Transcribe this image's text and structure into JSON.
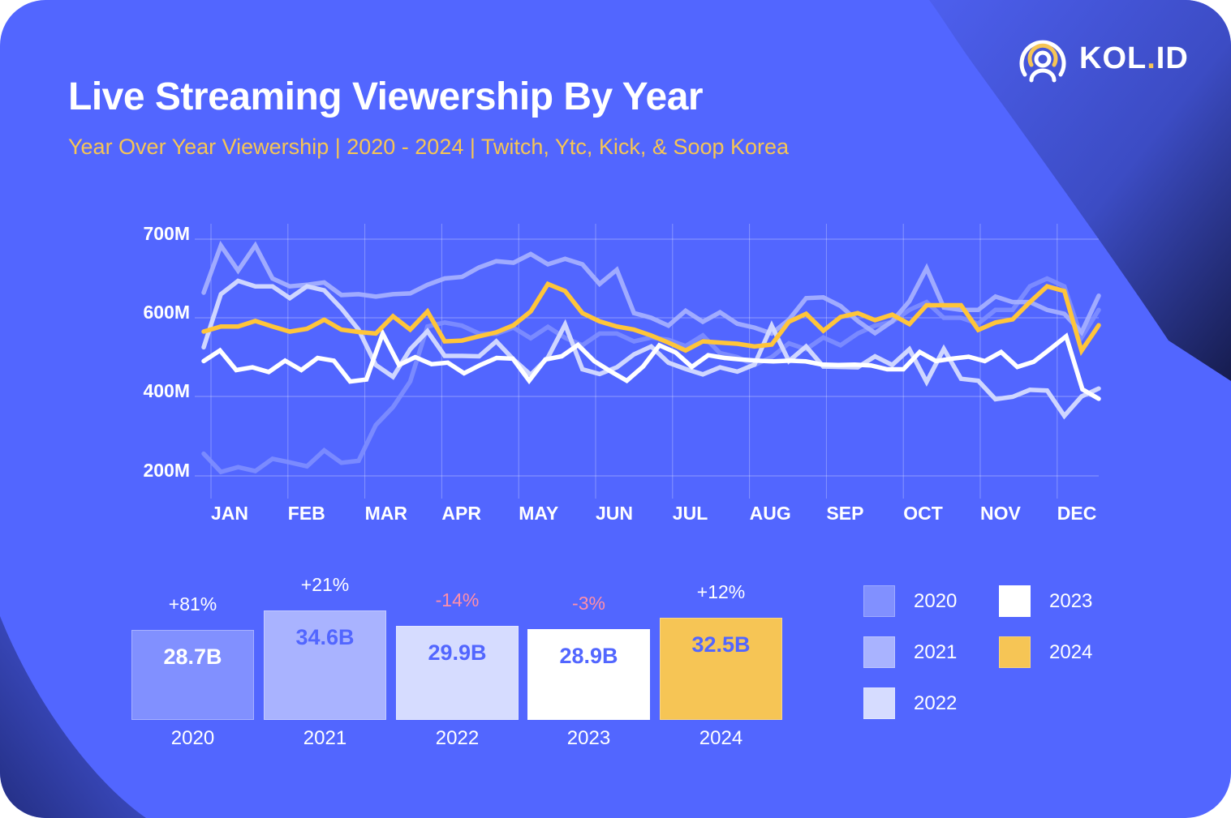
{
  "header": {
    "title": "Live Streaming Viewership By Year",
    "subtitle": "Year Over Year Viewership | 2020 - 2024 | Twitch, Ytc, Kick, & Soop Korea"
  },
  "brand": {
    "name_main": "KOL",
    "name_dot": ".",
    "name_end": "ID",
    "icon": "broadcast-person-icon",
    "accent": "#f6c555"
  },
  "colors": {
    "background": "#5266ff",
    "2020": "#8190ff",
    "2021": "#a9b3ff",
    "2022": "#d6dcff",
    "2023": "#ffffff",
    "2024": "#f6c555",
    "negative": "#ff8fa8",
    "positive": "#ffffff"
  },
  "chart_data": [
    {
      "type": "line",
      "title": "Live Streaming Viewership By Year",
      "xlabel": "",
      "ylabel": "",
      "y_ticks": [
        "700M",
        "600M",
        "400M",
        "200M"
      ],
      "y_tick_values": [
        700,
        600,
        400,
        200
      ],
      "y_unit": "M viewers (weekly)",
      "grid": true,
      "x_ticks": [
        "JAN",
        "FEB",
        "MAR",
        "APR",
        "MAY",
        "JUN",
        "JUL",
        "AUG",
        "SEP",
        "OCT",
        "NOV",
        "DEC"
      ],
      "series": [
        {
          "name": "2020",
          "values": [
            256,
            210,
            222,
            212,
            243,
            234,
            224,
            264,
            233,
            238,
            328,
            373,
            438,
            578,
            588,
            580,
            560,
            559,
            575,
            548,
            577,
            549,
            530,
            560,
            560,
            540,
            550,
            544,
            528,
            555,
            510,
            500,
            480,
            500,
            535,
            520,
            550,
            530,
            560,
            580,
            590,
            610,
            620,
            600,
            600,
            585,
            610,
            610,
            640,
            650,
            640,
            550,
            610
          ]
        },
        {
          "name": "2021",
          "values": [
            632,
            692,
            660,
            692,
            650,
            640,
            642,
            645,
            629,
            630,
            627,
            630,
            631,
            642,
            650,
            652,
            664,
            672,
            670,
            681,
            668,
            675,
            668,
            643,
            661,
            606,
            600,
            580,
            609,
            590,
            607,
            585,
            575,
            560,
            595,
            625,
            626,
            615,
            592,
            561,
            591,
            621,
            663,
            613,
            610,
            610,
            627,
            620,
            620,
            610,
            605,
            563,
            628
          ]
        },
        {
          "name": "2022",
          "values": [
            525,
            630,
            647,
            640,
            640,
            625,
            640,
            635,
            612,
            570,
            480,
            450,
            520,
            566,
            503,
            503,
            502,
            540,
            494,
            455,
            499,
            583,
            469,
            457,
            474,
            507,
            527,
            486,
            470,
            456,
            474,
            463,
            481,
            580,
            490,
            527,
            476,
            475,
            474,
            502,
            480,
            520,
            437,
            521,
            445,
            440,
            393,
            399,
            417,
            415,
            351,
            400,
            420
          ]
        },
        {
          "name": "2023",
          "values": [
            490,
            517,
            467,
            474,
            462,
            491,
            467,
            498,
            491,
            438,
            443,
            560,
            480,
            500,
            482,
            486,
            459,
            480,
            498,
            496,
            440,
            494,
            502,
            531,
            490,
            464,
            440,
            476,
            530,
            512,
            475,
            505,
            498,
            494,
            491,
            489,
            491,
            489,
            481,
            480,
            481,
            479,
            469,
            469,
            513,
            490,
            496,
            501,
            490,
            513,
            475,
            488,
            520,
            553,
            418,
            394
          ]
        },
        {
          "name": "2024",
          "values": [
            565,
            578,
            578,
            592,
            578,
            565,
            572,
            595,
            570,
            564,
            560,
            602,
            570,
            608,
            540,
            542,
            553,
            563,
            581,
            608,
            643,
            634,
            606,
            591,
            578,
            570,
            555,
            537,
            517,
            540,
            537,
            534,
            527,
            532,
            590,
            605,
            567,
            601,
            606,
            594,
            604,
            584,
            616,
            616,
            616,
            569,
            588,
            596,
            620,
            640,
            634,
            516,
            581
          ]
        }
      ]
    },
    {
      "type": "bar",
      "title": "Annual Total Viewership",
      "categories": [
        "2020",
        "2021",
        "2022",
        "2023",
        "2024"
      ],
      "values": [
        28.7,
        34.6,
        29.9,
        28.9,
        32.5
      ],
      "value_labels": [
        "28.7B",
        "34.6B",
        "29.9B",
        "28.9B",
        "32.5B"
      ],
      "change_labels": [
        "+81%",
        "+21%",
        "-14%",
        "-3%",
        "+12%"
      ],
      "change_direction": [
        "up",
        "up",
        "down",
        "down",
        "up"
      ],
      "ylim": [
        0,
        40
      ],
      "legend": {
        "placement": "right",
        "entries": [
          "2020",
          "2021",
          "2022",
          "2023",
          "2024"
        ]
      }
    }
  ]
}
